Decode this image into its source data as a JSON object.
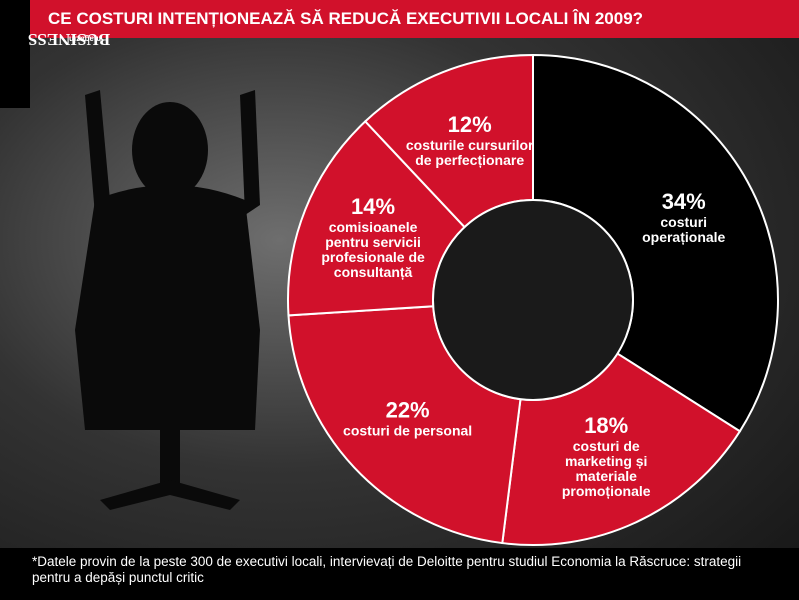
{
  "brand": "BUSINESS",
  "brand_sub": "magazin",
  "chart_data": {
    "type": "donut",
    "title": "CE COSTURI INTENȚIONEAZĂ SĂ REDUCĂ EXECUTIVII LOCALI ÎN 2009?",
    "categories": [
      "costuri operaționale",
      "costuri de marketing și materiale promoționale",
      "costuri de personal",
      "comisioanele pentru servicii profesionale de consultanță",
      "costurile cursurilor de perfecționare"
    ],
    "values": [
      34,
      18,
      22,
      14,
      12
    ],
    "value_labels": [
      "34%",
      "18%",
      "22%",
      "14%",
      "12%"
    ],
    "colors": [
      "#000000",
      "#d1112b",
      "#d1112b",
      "#d1112b",
      "#d1112b"
    ]
  },
  "footnote": "*Datele provin de la peste 300 de executivi locali, intervievați de Deloitte pentru studiul Economia la Răscruce: strategii pentru a depăși punctul critic"
}
